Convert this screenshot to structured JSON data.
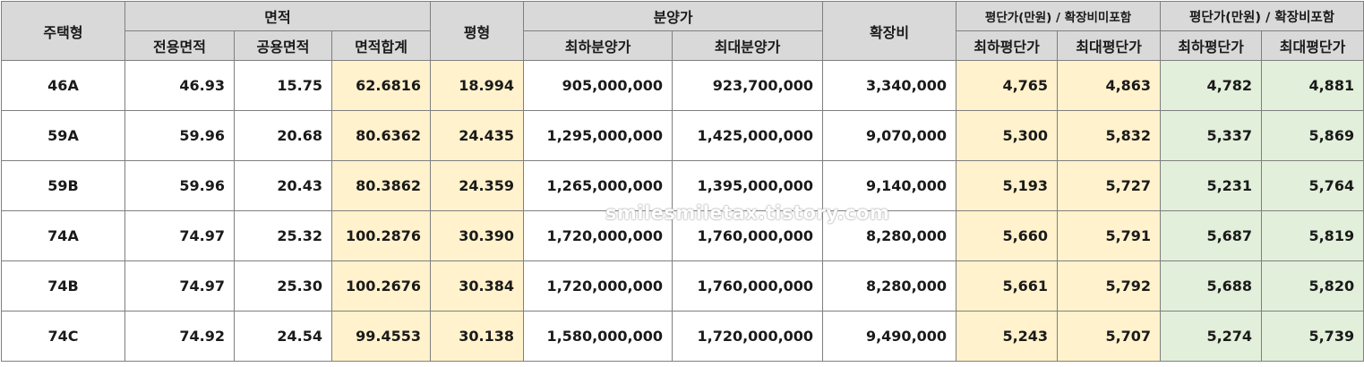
{
  "headers": {
    "type": "주택형",
    "area": "면적",
    "area_exclusive": "전용면적",
    "area_common": "공용면적",
    "area_total": "면적합계",
    "pyeong": "평형",
    "sale_price": "분양가",
    "price_min": "최하분양가",
    "price_max": "최대분양가",
    "expansion": "확장비",
    "ppp_excl": "평단가(만원) / 확장비미포함",
    "ppp_incl": "평단가(만원) / 확장비포함",
    "ppp_min": "최하평단가",
    "ppp_max": "최대평단가"
  },
  "rows": [
    [
      "46A",
      "46.93",
      "15.75",
      "62.6816",
      "18.994",
      "905,000,000",
      "923,700,000",
      "3,340,000",
      "4,765",
      "4,863",
      "4,782",
      "4,881"
    ],
    [
      "59A",
      "59.96",
      "20.68",
      "80.6362",
      "24.435",
      "1,295,000,000",
      "1,425,000,000",
      "9,070,000",
      "5,300",
      "5,832",
      "5,337",
      "5,869"
    ],
    [
      "59B",
      "59.96",
      "20.43",
      "80.3862",
      "24.359",
      "1,265,000,000",
      "1,395,000,000",
      "9,140,000",
      "5,193",
      "5,727",
      "5,231",
      "5,764"
    ],
    [
      "74A",
      "74.97",
      "25.32",
      "100.2876",
      "30.390",
      "1,720,000,000",
      "1,760,000,000",
      "8,280,000",
      "5,660",
      "5,791",
      "5,687",
      "5,819"
    ],
    [
      "74B",
      "74.97",
      "25.30",
      "100.2676",
      "30.384",
      "1,720,000,000",
      "1,760,000,000",
      "8,280,000",
      "5,661",
      "5,792",
      "5,688",
      "5,820"
    ],
    [
      "74C",
      "74.92",
      "24.54",
      "99.4553",
      "30.138",
      "1,580,000,000",
      "1,720,000,000",
      "9,490,000",
      "5,243",
      "5,707",
      "5,274",
      "5,739"
    ]
  ],
  "watermark": "smilesmiletax.tistory.com",
  "colors": {
    "header": "#d9d9d9",
    "yellow": "#fff2cc",
    "green": "#e2efda"
  }
}
